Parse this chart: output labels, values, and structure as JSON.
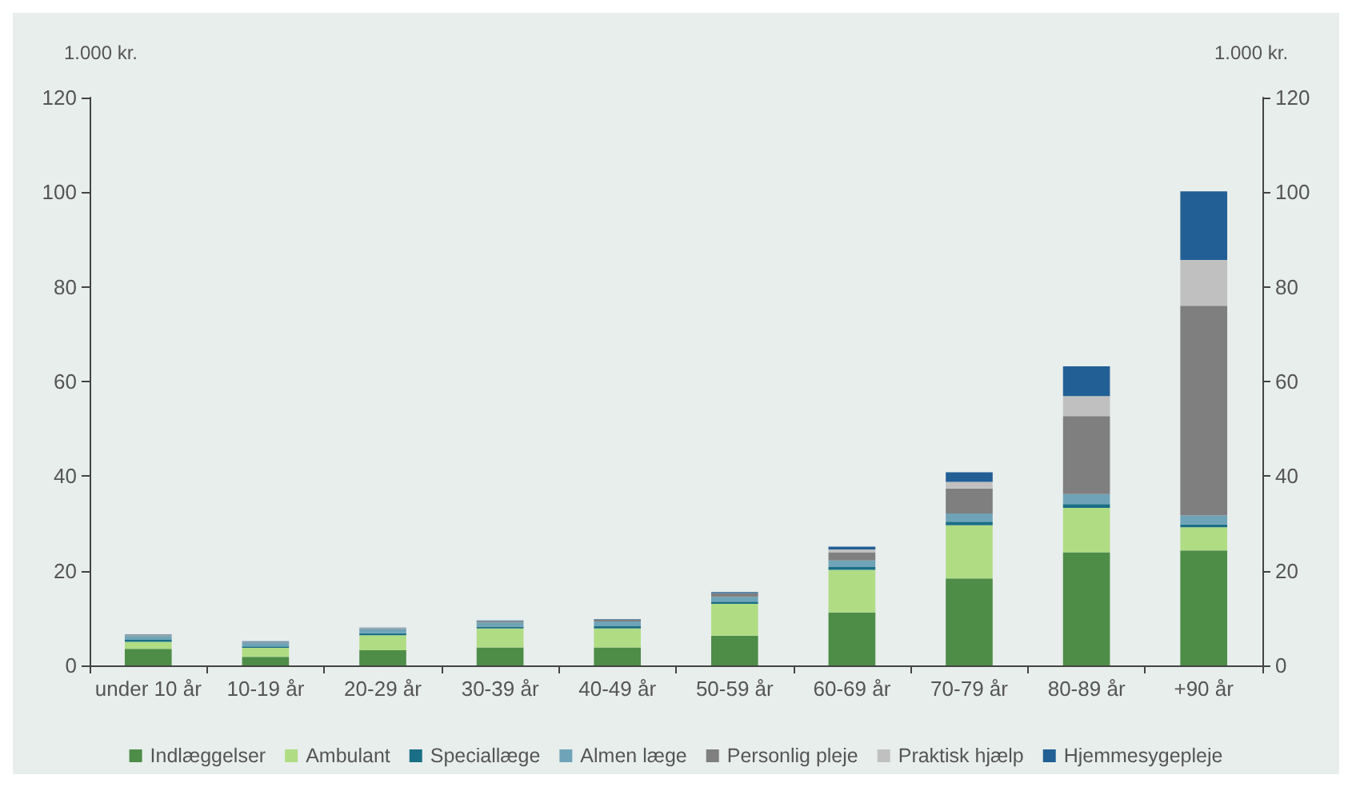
{
  "chart_data": {
    "type": "bar",
    "stacked": true,
    "ylabel": "1.000 kr.",
    "y2label": "1.000 kr.",
    "categories": [
      "under 10 år",
      "10-19 år",
      "20-29 år",
      "30-39 år",
      "40-49 år",
      "50-59 år",
      "60-69 år",
      "70-79 år",
      "80-89 år",
      "+90 år"
    ],
    "series": [
      {
        "name": "Indlæggelser",
        "color": "#4e8d48",
        "values": [
          3.5,
          1.8,
          3.2,
          3.8,
          3.8,
          6.3,
          11.2,
          18.4,
          23.9,
          24.3
        ]
      },
      {
        "name": "Ambulant",
        "color": "#b0dc84",
        "values": [
          1.5,
          1.9,
          3.2,
          4.0,
          4.0,
          6.7,
          9.0,
          11.2,
          9.4,
          4.9
        ]
      },
      {
        "name": "Speciallæge",
        "color": "#1a6f86",
        "values": [
          0.4,
          0.3,
          0.4,
          0.4,
          0.5,
          0.5,
          0.6,
          0.8,
          0.8,
          0.6
        ]
      },
      {
        "name": "Almen læge",
        "color": "#6fa4b8",
        "values": [
          0.8,
          0.8,
          0.9,
          0.9,
          1.0,
          1.0,
          1.4,
          1.7,
          2.1,
          1.9
        ]
      },
      {
        "name": "Personlig pleje",
        "color": "#7f7f7f",
        "values": [
          0.2,
          0.1,
          0.1,
          0.2,
          0.4,
          0.8,
          1.7,
          5.3,
          16.5,
          44.3
        ]
      },
      {
        "name": "Praktisk hjælp",
        "color": "#c0c0c0",
        "values": [
          0.1,
          0.1,
          0.1,
          0.1,
          null,
          null,
          0.6,
          1.4,
          4.2,
          9.7
        ]
      },
      {
        "name": "Hjemmesygepleje",
        "color": "#225f94",
        "values": [
          0.1,
          0.1,
          0.1,
          0.1,
          0.1,
          0.2,
          0.6,
          2.0,
          6.3,
          14.5
        ]
      }
    ],
    "ylim": [
      0,
      120
    ],
    "yticks": [
      0,
      20,
      40,
      60,
      80,
      100,
      120
    ],
    "y2lim": [
      0,
      120
    ],
    "y2ticks": [
      0,
      20,
      40,
      60,
      80,
      100,
      120
    ],
    "grid": false,
    "legend": "bottom"
  }
}
